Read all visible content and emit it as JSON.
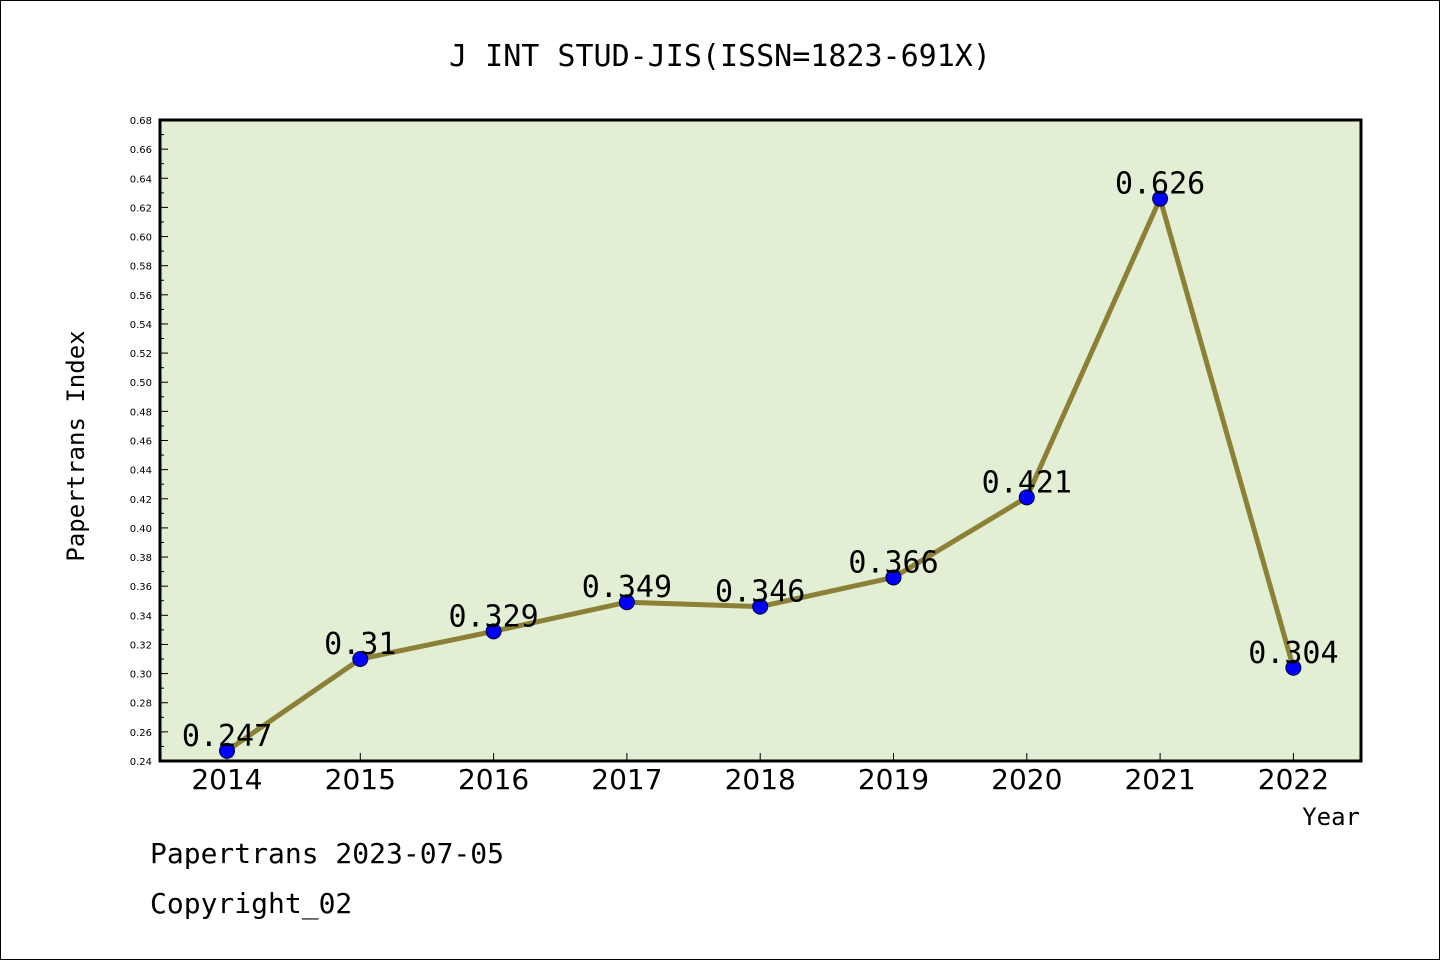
{
  "chart_data": {
    "type": "line",
    "title": "J INT STUD-JIS(ISSN=1823-691X)",
    "xlabel": "Year",
    "ylabel": "Papertrans Index",
    "categories": [
      "2014",
      "2015",
      "2016",
      "2017",
      "2018",
      "2019",
      "2020",
      "2021",
      "2022"
    ],
    "series": [
      {
        "values": [
          0.247,
          0.31,
          0.329,
          0.349,
          0.346,
          0.366,
          0.421,
          0.626,
          0.304
        ],
        "data_labels": [
          "0.247",
          "0.31",
          "0.329",
          "0.349",
          "0.346",
          "0.366",
          "0.421",
          "0.626",
          "0.304"
        ]
      }
    ],
    "ylim": [
      0.24,
      0.68
    ],
    "yticks": [
      "0.24",
      "0.26",
      "0.28",
      "0.30",
      "0.32",
      "0.34",
      "0.36",
      "0.38",
      "0.40",
      "0.42",
      "0.44",
      "0.46",
      "0.48",
      "0.50",
      "0.52",
      "0.54",
      "0.56",
      "0.58",
      "0.60",
      "0.62",
      "0.64",
      "0.66",
      "0.68"
    ],
    "grid": false,
    "colors": {
      "plot_background": "#e2efd4",
      "line": "#8b8036",
      "marker": "#0000ff"
    }
  },
  "footer": {
    "line1": "Papertrans 2023-07-05",
    "line2": "Copyright_02"
  }
}
